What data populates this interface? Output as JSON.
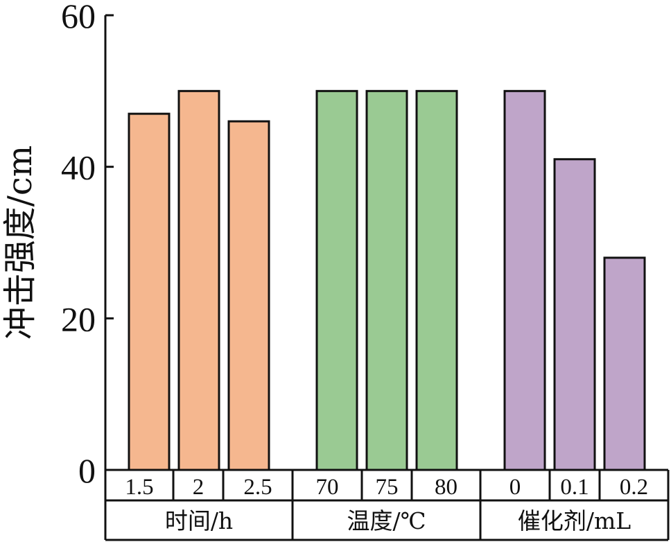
{
  "chart_data": {
    "type": "bar",
    "ylabel": "冲击强度/cm",
    "ylim": [
      0,
      60
    ],
    "yticks": [
      0,
      20,
      40,
      60
    ],
    "grid": false,
    "groups": [
      {
        "name": "时间/h",
        "color": "#F5B78F",
        "categories": [
          "1.5",
          "2",
          "2.5"
        ],
        "values": [
          47,
          50,
          46
        ]
      },
      {
        "name": "温度/℃",
        "color": "#9ACA93",
        "categories": [
          "70",
          "75",
          "80"
        ],
        "values": [
          50,
          50,
          50
        ]
      },
      {
        "name": "催化剂/mL",
        "color": "#BFA5C9",
        "categories": [
          "0",
          "0.1",
          "0.2"
        ],
        "values": [
          50,
          41,
          28
        ]
      }
    ]
  }
}
